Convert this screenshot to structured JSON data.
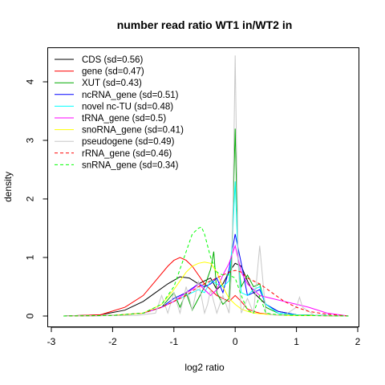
{
  "chart_data": {
    "type": "line",
    "title": "number read ratio WT1 in/WT2 in",
    "xlabel": "log2 ratio",
    "ylabel": "density",
    "xlim": [
      -3,
      2
    ],
    "ylim": [
      0,
      4.5
    ],
    "xticks": [
      "-3",
      "-2",
      "-1",
      "0",
      "1",
      "2"
    ],
    "yticks": [
      "0",
      "1",
      "2",
      "3",
      "4"
    ],
    "xtick_values": [
      -3,
      -2,
      -1,
      0,
      1,
      2
    ],
    "ytick_values": [
      0,
      1,
      2,
      3,
      4
    ],
    "grid": false,
    "legend_position": "top-left",
    "series": [
      {
        "name": "CDS (sd=0.56)",
        "color": "#000000",
        "dash": "solid",
        "x": [
          -2.8,
          -2.2,
          -1.8,
          -1.5,
          -1.3,
          -1.1,
          -0.9,
          -0.75,
          -0.6,
          -0.5,
          -0.4,
          -0.3,
          -0.2,
          -0.1,
          0,
          0.1,
          0.2,
          0.3,
          0.4,
          0.5,
          0.7,
          1.0,
          1.4,
          1.85
        ],
        "y": [
          0,
          0.02,
          0.1,
          0.25,
          0.4,
          0.55,
          0.67,
          0.65,
          0.55,
          0.6,
          0.65,
          0.45,
          0.55,
          0.75,
          0.9,
          0.85,
          0.6,
          0.4,
          0.3,
          0.2,
          0.08,
          0.02,
          0.01,
          0
        ]
      },
      {
        "name": "gene (sd=0.47)",
        "color": "#ff0000",
        "dash": "solid",
        "x": [
          -2.8,
          -2.2,
          -1.8,
          -1.5,
          -1.3,
          -1.1,
          -1.0,
          -0.9,
          -0.8,
          -0.7,
          -0.6,
          -0.5,
          -0.4,
          -0.3,
          -0.2,
          -0.1,
          0,
          0.1,
          0.2,
          0.3,
          0.4,
          0.6,
          1.0,
          1.85
        ],
        "y": [
          0,
          0.02,
          0.15,
          0.35,
          0.6,
          0.85,
          0.95,
          1.0,
          0.95,
          0.85,
          0.7,
          0.55,
          0.45,
          0.35,
          0.3,
          0.25,
          0.35,
          0.25,
          0.12,
          0.08,
          0.05,
          0.02,
          0.01,
          0
        ]
      },
      {
        "name": "XUT (sd=0.43)",
        "color": "#00aa00",
        "dash": "solid",
        "x": [
          -2.8,
          -2.0,
          -1.5,
          -1.2,
          -1.0,
          -0.9,
          -0.8,
          -0.7,
          -0.6,
          -0.5,
          -0.4,
          -0.35,
          -0.3,
          -0.2,
          -0.1,
          -0.05,
          0,
          0.05,
          0.1,
          0.2,
          0.3,
          0.4,
          0.5,
          0.7,
          1.0,
          1.85
        ],
        "y": [
          0,
          0.01,
          0.05,
          0.15,
          0.4,
          0.15,
          0.4,
          0.1,
          0.3,
          0.5,
          0.8,
          1.1,
          0.4,
          0.2,
          0.3,
          1.2,
          3.2,
          0.9,
          0.5,
          0.7,
          0.5,
          0.55,
          0.15,
          0.05,
          0.02,
          0
        ]
      },
      {
        "name": "ncRNA_gene (sd=0.51)",
        "color": "#0000ff",
        "dash": "solid",
        "x": [
          -2.8,
          -2.0,
          -1.5,
          -1.2,
          -1.0,
          -0.8,
          -0.6,
          -0.5,
          -0.4,
          -0.3,
          -0.2,
          -0.1,
          0,
          0.1,
          0.2,
          0.3,
          0.4,
          0.5,
          0.7,
          1.0,
          1.85
        ],
        "y": [
          0,
          0.01,
          0.05,
          0.15,
          0.3,
          0.4,
          0.55,
          0.5,
          0.55,
          0.65,
          0.4,
          0.8,
          1.4,
          0.9,
          0.35,
          0.4,
          0.45,
          0.2,
          0.08,
          0.02,
          0
        ]
      },
      {
        "name": "novel nc-TU (sd=0.48)",
        "color": "#00ffff",
        "dash": "solid",
        "x": [
          -2.8,
          -2.0,
          -1.5,
          -1.2,
          -1.0,
          -0.8,
          -0.6,
          -0.5,
          -0.4,
          -0.3,
          -0.2,
          -0.1,
          -0.05,
          0,
          0.05,
          0.1,
          0.2,
          0.3,
          0.4,
          0.5,
          0.7,
          1.0,
          1.85
        ],
        "y": [
          0,
          0.01,
          0.05,
          0.15,
          0.25,
          0.35,
          0.45,
          0.4,
          0.6,
          0.55,
          0.5,
          0.6,
          1.2,
          2.3,
          0.9,
          0.4,
          0.35,
          0.45,
          0.5,
          0.2,
          0.05,
          0.02,
          0
        ]
      },
      {
        "name": "tRNA_gene (sd=0.5)",
        "color": "#ff00ff",
        "dash": "solid",
        "x": [
          -2.8,
          -2.0,
          -1.5,
          -1.2,
          -1.0,
          -0.8,
          -0.7,
          -0.6,
          -0.5,
          -0.4,
          -0.3,
          -0.2,
          -0.1,
          0,
          0.1,
          0.2,
          0.3,
          0.4,
          0.6,
          0.8,
          1.0,
          1.2,
          1.5,
          1.85
        ],
        "y": [
          0,
          0.01,
          0.05,
          0.15,
          0.25,
          0.4,
          0.45,
          0.55,
          0.45,
          0.35,
          0.45,
          0.7,
          0.9,
          1.2,
          0.75,
          0.55,
          0.45,
          0.35,
          0.3,
          0.25,
          0.2,
          0.15,
          0.05,
          0
        ]
      },
      {
        "name": "snoRNA_gene (sd=0.41)",
        "color": "#ffff00",
        "dash": "solid",
        "x": [
          -2.8,
          -2.0,
          -1.5,
          -1.2,
          -1.0,
          -0.9,
          -0.8,
          -0.7,
          -0.6,
          -0.5,
          -0.4,
          -0.3,
          -0.2,
          -0.1,
          0,
          0.1,
          0.2,
          0.3,
          0.5,
          0.8,
          1.2,
          1.85
        ],
        "y": [
          0,
          0.01,
          0.05,
          0.2,
          0.45,
          0.6,
          0.75,
          0.85,
          0.9,
          0.92,
          0.9,
          0.75,
          0.5,
          0.3,
          0.2,
          0.12,
          0.08,
          0.05,
          0.03,
          0.01,
          0.01,
          0
        ]
      },
      {
        "name": "pseudogene (sd=0.49)",
        "color": "#c8c8c8",
        "dash": "solid",
        "x": [
          -2.8,
          -1.6,
          -1.3,
          -1.2,
          -1.1,
          -1.0,
          -0.9,
          -0.8,
          -0.7,
          -0.6,
          -0.5,
          -0.45,
          -0.4,
          -0.3,
          -0.2,
          -0.1,
          -0.05,
          0,
          0.05,
          0.1,
          0.2,
          0.3,
          0.4,
          0.5,
          0.6,
          0.8,
          1.0,
          1.05,
          1.1,
          1.3,
          1.85
        ],
        "y": [
          0,
          0.01,
          0.05,
          0.35,
          0.05,
          0.4,
          0.05,
          0.5,
          0.1,
          0.6,
          0.05,
          0.2,
          0.45,
          0.05,
          0.35,
          0.05,
          0.9,
          4.45,
          0.9,
          0.05,
          0.3,
          0.05,
          1.2,
          0.05,
          0.02,
          0.01,
          0.15,
          0.32,
          0.15,
          0.01,
          0
        ]
      },
      {
        "name": "rRNA_gene (sd=0.46)",
        "color": "#ff0000",
        "dash": "dashed",
        "x": [
          -2.8,
          -2.0,
          -1.5,
          -1.2,
          -1.0,
          -0.8,
          -0.6,
          -0.4,
          -0.2,
          -0.1,
          0,
          0.1,
          0.2,
          0.4,
          0.6,
          0.8,
          1.0,
          1.2,
          1.5,
          1.85
        ],
        "y": [
          0,
          0.01,
          0.05,
          0.15,
          0.25,
          0.35,
          0.5,
          0.6,
          0.7,
          0.75,
          0.78,
          0.75,
          0.65,
          0.55,
          0.4,
          0.25,
          0.15,
          0.08,
          0.03,
          0
        ]
      },
      {
        "name": "snRNA_gene (sd=0.34)",
        "color": "#00ff00",
        "dash": "dashed",
        "x": [
          -2.8,
          -2.0,
          -1.5,
          -1.2,
          -1.0,
          -0.9,
          -0.8,
          -0.7,
          -0.6,
          -0.55,
          -0.5,
          -0.4,
          -0.3,
          -0.2,
          -0.1,
          0,
          0.1,
          0.2,
          0.3,
          0.4,
          0.5,
          0.7,
          1.0,
          1.85
        ],
        "y": [
          0,
          0.01,
          0.05,
          0.2,
          0.5,
          0.8,
          1.1,
          1.4,
          1.5,
          1.52,
          1.4,
          1.0,
          0.75,
          0.7,
          0.7,
          0.65,
          0.35,
          0.1,
          0.05,
          0.35,
          0.05,
          0.02,
          0.01,
          0
        ]
      }
    ]
  }
}
